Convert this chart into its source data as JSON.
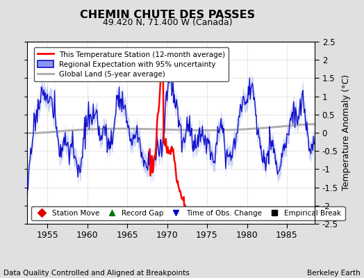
{
  "title": "CHEMIN CHUTE DES PASSES",
  "subtitle": "49.420 N, 71.400 W (Canada)",
  "ylabel": "Temperature Anomaly (°C)",
  "xlabel_note": "Data Quality Controlled and Aligned at Breakpoints",
  "credit": "Berkeley Earth",
  "xlim": [
    1952.5,
    1988.5
  ],
  "ylim": [
    -2.5,
    2.5
  ],
  "yticks": [
    -2.5,
    -2,
    -1.5,
    -1,
    -0.5,
    0,
    0.5,
    1,
    1.5,
    2,
    2.5
  ],
  "xticks": [
    1955,
    1960,
    1965,
    1970,
    1975,
    1980,
    1985
  ],
  "bg_color": "#e0e0e0",
  "plot_bg_color": "#ffffff",
  "legend1_items": [
    {
      "label": "This Temperature Station (12-month average)",
      "color": "#ff0000"
    },
    {
      "label": "Regional Expectation with 95% uncertainty",
      "color": "#2222bb"
    },
    {
      "label": "Global Land (5-year average)",
      "color": "#b0b0b0"
    }
  ],
  "legend2_items": [
    {
      "label": "Station Move",
      "color": "#dd0000",
      "marker": "D"
    },
    {
      "label": "Record Gap",
      "color": "#007700",
      "marker": "^"
    },
    {
      "label": "Time of Obs. Change",
      "color": "#0000cc",
      "marker": "v"
    },
    {
      "label": "Empirical Break",
      "color": "#000000",
      "marker": "s"
    }
  ],
  "blue_band_color": "#8899ee",
  "blue_line_color": "#1111cc",
  "red_line_color": "#ff0000",
  "gray_line_color": "#b0b0b0"
}
